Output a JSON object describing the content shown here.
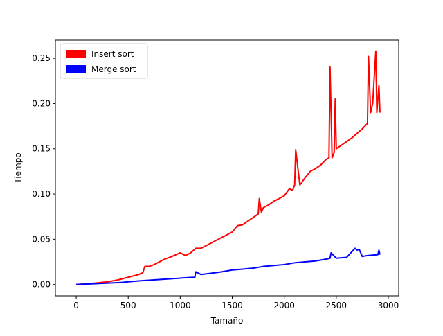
{
  "chart_data": {
    "type": "line",
    "xlabel": "Tamaño",
    "ylabel": "Tiempo",
    "xlim": [
      -200,
      3100
    ],
    "ylim": [
      -0.0125,
      0.27
    ],
    "x_ticks": [
      0,
      500,
      1000,
      1500,
      2000,
      2500,
      3000
    ],
    "x_tick_labels": [
      "0",
      "500",
      "1000",
      "1500",
      "2000",
      "2500",
      "3000"
    ],
    "y_ticks": [
      0.0,
      0.05,
      0.1,
      0.15,
      0.2,
      0.25
    ],
    "y_tick_labels": [
      "0.00",
      "0.05",
      "0.10",
      "0.15",
      "0.20",
      "0.25"
    ],
    "grid": false,
    "legend_position": "top-left",
    "series": [
      {
        "name": "Insert sort",
        "color": "#ff0000",
        "x": [
          0,
          100,
          200,
          300,
          400,
          500,
          600,
          640,
          660,
          700,
          750,
          800,
          850,
          900,
          960,
          1000,
          1050,
          1100,
          1150,
          1200,
          1250,
          1300,
          1350,
          1400,
          1450,
          1500,
          1550,
          1600,
          1650,
          1700,
          1750,
          1760,
          1780,
          1800,
          1850,
          1900,
          1950,
          2000,
          2050,
          2080,
          2100,
          2110,
          2150,
          2200,
          2250,
          2300,
          2350,
          2400,
          2430,
          2440,
          2460,
          2480,
          2490,
          2500,
          2550,
          2600,
          2650,
          2700,
          2750,
          2800,
          2810,
          2830,
          2850,
          2880,
          2890,
          2910,
          2920
        ],
        "values": [
          0.0,
          0.0006,
          0.0018,
          0.003,
          0.005,
          0.008,
          0.011,
          0.013,
          0.02,
          0.02,
          0.022,
          0.025,
          0.028,
          0.03,
          0.033,
          0.035,
          0.032,
          0.035,
          0.04,
          0.04,
          0.043,
          0.046,
          0.049,
          0.052,
          0.055,
          0.058,
          0.065,
          0.066,
          0.07,
          0.074,
          0.078,
          0.095,
          0.08,
          0.085,
          0.088,
          0.092,
          0.095,
          0.098,
          0.106,
          0.104,
          0.11,
          0.149,
          0.11,
          0.118,
          0.125,
          0.128,
          0.132,
          0.138,
          0.14,
          0.241,
          0.14,
          0.146,
          0.205,
          0.15,
          0.154,
          0.158,
          0.162,
          0.167,
          0.172,
          0.178,
          0.252,
          0.19,
          0.2,
          0.258,
          0.19,
          0.22,
          0.19
        ]
      },
      {
        "name": "Merge sort",
        "color": "#0000ff",
        "x": [
          0,
          200,
          400,
          600,
          800,
          1000,
          1100,
          1140,
          1150,
          1200,
          1300,
          1400,
          1500,
          1600,
          1700,
          1800,
          1900,
          2000,
          2100,
          2200,
          2300,
          2400,
          2440,
          2450,
          2500,
          2600,
          2680,
          2700,
          2720,
          2750,
          2800,
          2900,
          2910,
          2920
        ],
        "values": [
          0.0,
          0.001,
          0.002,
          0.004,
          0.0055,
          0.007,
          0.0078,
          0.008,
          0.014,
          0.011,
          0.0125,
          0.014,
          0.016,
          0.017,
          0.018,
          0.02,
          0.021,
          0.022,
          0.024,
          0.025,
          0.026,
          0.028,
          0.029,
          0.035,
          0.029,
          0.03,
          0.04,
          0.038,
          0.039,
          0.031,
          0.032,
          0.033,
          0.038,
          0.033
        ]
      }
    ]
  }
}
